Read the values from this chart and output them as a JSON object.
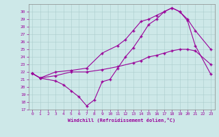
{
  "xlabel": "Windchill (Refroidissement éolien,°C)",
  "xlim": [
    -0.5,
    23.5
  ],
  "ylim": [
    17,
    31
  ],
  "yticks": [
    17,
    18,
    19,
    20,
    21,
    22,
    23,
    24,
    25,
    26,
    27,
    28,
    29,
    30
  ],
  "xticks": [
    0,
    1,
    2,
    3,
    4,
    5,
    6,
    7,
    8,
    9,
    10,
    11,
    12,
    13,
    14,
    15,
    16,
    17,
    18,
    19,
    20,
    21,
    22,
    23
  ],
  "bg_color": "#cde8e8",
  "line_color": "#990099",
  "line1_x": [
    0,
    1,
    3,
    5,
    7,
    9,
    11,
    13,
    14,
    15,
    16,
    17,
    18,
    19,
    20,
    21,
    23
  ],
  "line1_y": [
    21.8,
    21.2,
    21.5,
    22.0,
    22.0,
    22.3,
    22.7,
    23.2,
    23.5,
    24.0,
    24.2,
    24.5,
    24.8,
    25.0,
    25.0,
    24.8,
    23.0
  ],
  "line2_x": [
    0,
    1,
    3,
    5,
    7,
    9,
    11,
    12,
    13,
    14,
    15,
    16,
    17,
    18,
    19,
    20,
    21,
    23
  ],
  "line2_y": [
    21.8,
    21.2,
    22.0,
    22.2,
    22.5,
    24.5,
    25.5,
    26.3,
    27.5,
    28.7,
    29.0,
    29.5,
    30.0,
    30.5,
    30.0,
    29.0,
    27.5,
    25.0
  ],
  "line3_x": [
    0,
    1,
    3,
    4,
    5,
    6,
    7,
    8,
    9,
    10,
    11,
    12,
    13,
    14,
    15,
    16,
    17,
    18,
    19,
    20,
    21,
    23
  ],
  "line3_y": [
    21.8,
    21.2,
    20.8,
    20.3,
    19.5,
    18.7,
    17.5,
    18.3,
    20.7,
    21.0,
    22.5,
    24.0,
    25.2,
    26.7,
    28.3,
    29.0,
    30.0,
    30.5,
    30.0,
    28.8,
    25.5,
    21.7
  ]
}
